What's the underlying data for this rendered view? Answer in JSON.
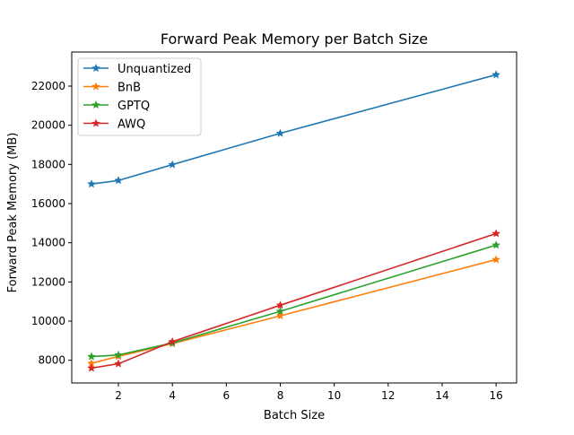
{
  "chart_data": {
    "type": "line",
    "title": "Forward Peak Memory per Batch Size",
    "xlabel": "Batch Size",
    "ylabel": "Forward Peak Memory (MB)",
    "x": [
      1,
      2,
      4,
      8,
      16
    ],
    "xlim": [
      0.27,
      16.76
    ],
    "ylim": [
      6840,
      23740
    ],
    "xticks": [
      2,
      4,
      6,
      8,
      10,
      12,
      14,
      16
    ],
    "yticks": [
      8000,
      10000,
      12000,
      14000,
      16000,
      18000,
      20000,
      22000
    ],
    "grid": false,
    "legend_position": "top-left",
    "marker": "star",
    "series": [
      {
        "name": "Unquantized",
        "color": "#1f77b4",
        "values": [
          17000,
          17180,
          17990,
          19590,
          22580
        ]
      },
      {
        "name": "BnB",
        "color": "#ff7f0e",
        "values": [
          7840,
          8200,
          8850,
          10270,
          13140
        ]
      },
      {
        "name": "GPTQ",
        "color": "#2ca02c",
        "values": [
          8190,
          8270,
          8880,
          10500,
          13880
        ]
      },
      {
        "name": "AWQ",
        "color": "#d62728",
        "values": [
          7600,
          7820,
          8950,
          10810,
          14470
        ]
      }
    ]
  }
}
